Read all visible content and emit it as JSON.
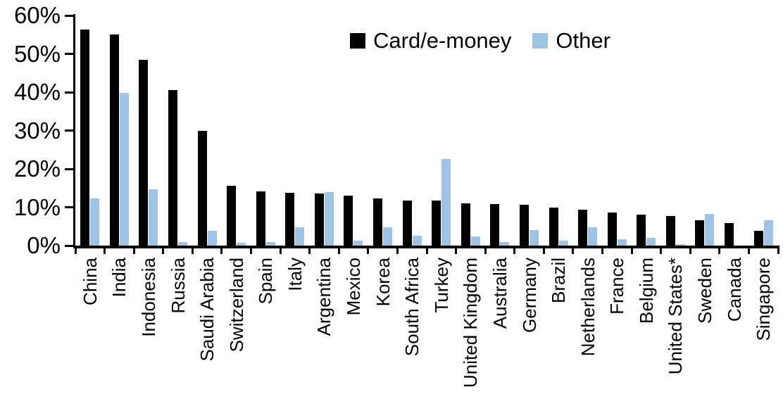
{
  "chart_data": {
    "type": "bar",
    "title": "",
    "xlabel": "",
    "ylabel": "",
    "ylim": [
      0,
      60
    ],
    "yticks": [
      0,
      10,
      20,
      30,
      40,
      50,
      60
    ],
    "ytick_labels": [
      "0%",
      "10%",
      "20%",
      "30%",
      "40%",
      "50%",
      "60%"
    ],
    "grid": false,
    "legend_position": "top-center",
    "background_color": "#FFFFFF",
    "axis_color": "#000000",
    "categories": [
      "China",
      "India",
      "Indonesia",
      "Russia",
      "Saudi Arabia",
      "Switzerland",
      "Spain",
      "Italy",
      "Argentina",
      "Mexico",
      "Korea",
      "South Africa",
      "Turkey",
      "United Kingdom",
      "Australia",
      "Germany",
      "Brazil",
      "Netherlands",
      "France",
      "Belgium",
      "United States*",
      "Sweden",
      "Canada",
      "Singapore"
    ],
    "series": [
      {
        "name": "Card/e-money",
        "color": "#000000",
        "values": [
          56.4,
          55.1,
          48.4,
          40.6,
          29.9,
          15.6,
          14.1,
          13.8,
          13.6,
          13.0,
          12.3,
          11.8,
          11.7,
          11.1,
          10.8,
          10.6,
          10.0,
          9.3,
          8.6,
          8.1,
          7.8,
          6.6,
          5.9,
          3.9
        ]
      },
      {
        "name": "Other",
        "color": "#9DC3E6",
        "values": [
          12.3,
          39.9,
          14.6,
          1.0,
          3.8,
          0.7,
          1.0,
          4.8,
          14.0,
          1.3,
          4.7,
          2.5,
          22.5,
          2.4,
          1.0,
          4.0,
          1.2,
          4.8,
          1.6,
          2.0,
          0.3,
          8.2,
          0,
          6.7
        ]
      }
    ]
  }
}
